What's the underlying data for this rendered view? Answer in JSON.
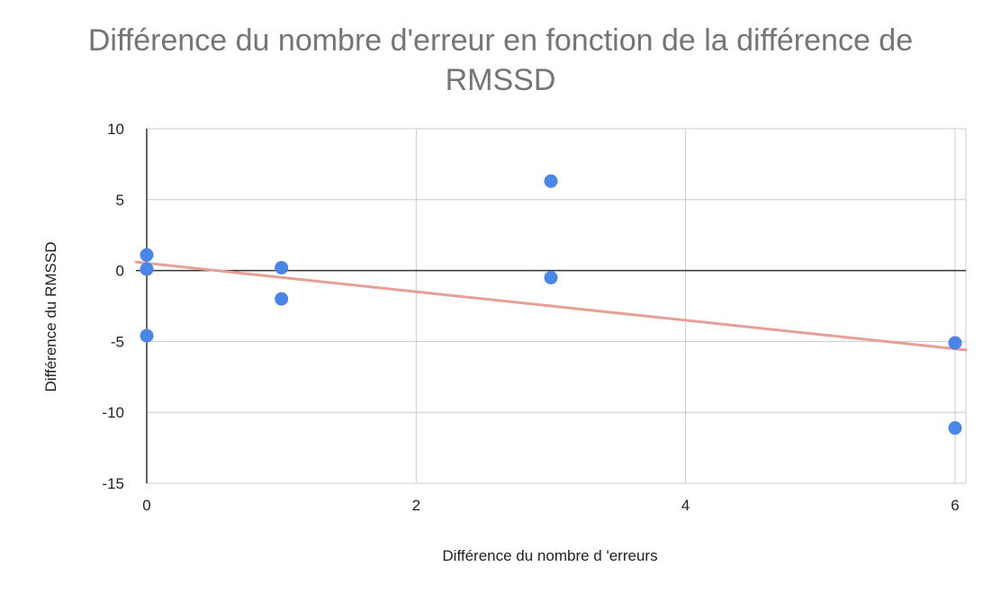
{
  "chart_data": {
    "type": "scatter",
    "title_lines": [
      "Différence du nombre d'erreur en fonction de la différence de",
      "RMSSD"
    ],
    "xlabel": "Différence du nombre d 'erreurs",
    "ylabel": "Différence du RMSSD",
    "xlim": [
      0,
      6
    ],
    "ylim": [
      -15,
      10
    ],
    "x_ticks": [
      0,
      2,
      4,
      6
    ],
    "y_ticks": [
      -15,
      -10,
      -5,
      0,
      5,
      10
    ],
    "grid": true,
    "legend": "none",
    "series": [
      {
        "points": [
          {
            "x": 0,
            "y": 1.1
          },
          {
            "x": 0,
            "y": 0.1
          },
          {
            "x": 0,
            "y": -4.6
          },
          {
            "x": 1,
            "y": 0.2
          },
          {
            "x": 1,
            "y": -2.0
          },
          {
            "x": 3,
            "y": 6.3
          },
          {
            "x": 3,
            "y": -0.5
          },
          {
            "x": 6,
            "y": -5.1
          },
          {
            "x": 6,
            "y": -11.1
          }
        ],
        "color": "#4a86e8"
      }
    ],
    "trendline": {
      "type": "linear",
      "color": "#e6a096",
      "start": {
        "x": -0.08,
        "y": 0.6
      },
      "end": {
        "x": 6.08,
        "y": -5.6
      }
    }
  }
}
